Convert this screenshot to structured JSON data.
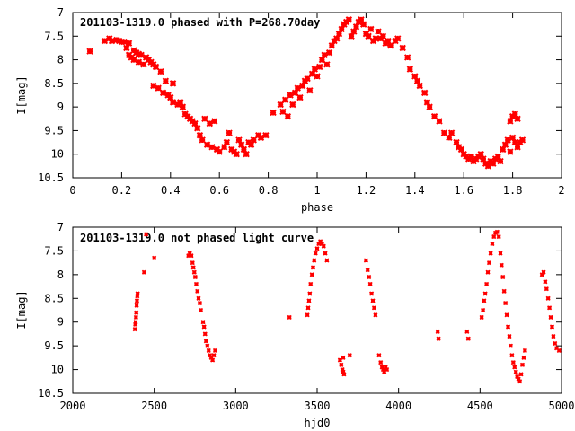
{
  "chart_data": [
    {
      "type": "scatter",
      "title": "201103-1319.0 phased with P=268.70day",
      "xlabel": "phase",
      "ylabel": "I[mag]",
      "xlim": [
        0,
        2
      ],
      "ylim": [
        7,
        10.5
      ],
      "y_inverted": true,
      "x_ticks": [
        "0",
        "0.2",
        "0.4",
        "0.6",
        "0.8",
        "1",
        "1.2",
        "1.4",
        "1.6",
        "1.8",
        "2"
      ],
      "y_ticks": [
        "7",
        "7.5",
        "8",
        "8.5",
        "9",
        "9.5",
        "10",
        "10.5"
      ],
      "marker_color": "#ff0000",
      "marker": "large-cross",
      "points": [
        [
          0.07,
          7.82
        ],
        [
          0.13,
          7.6
        ],
        [
          0.15,
          7.55
        ],
        [
          0.16,
          7.6
        ],
        [
          0.18,
          7.58
        ],
        [
          0.19,
          7.6
        ],
        [
          0.2,
          7.62
        ],
        [
          0.21,
          7.62
        ],
        [
          0.22,
          7.75
        ],
        [
          0.23,
          7.65
        ],
        [
          0.23,
          7.9
        ],
        [
          0.24,
          7.95
        ],
        [
          0.25,
          7.8
        ],
        [
          0.25,
          8.0
        ],
        [
          0.26,
          7.85
        ],
        [
          0.27,
          8.05
        ],
        [
          0.27,
          7.88
        ],
        [
          0.28,
          7.9
        ],
        [
          0.29,
          8.1
        ],
        [
          0.3,
          7.95
        ],
        [
          0.31,
          8.0
        ],
        [
          0.32,
          8.05
        ],
        [
          0.33,
          8.1
        ],
        [
          0.33,
          8.55
        ],
        [
          0.34,
          8.15
        ],
        [
          0.35,
          8.6
        ],
        [
          0.36,
          8.25
        ],
        [
          0.37,
          8.7
        ],
        [
          0.38,
          8.45
        ],
        [
          0.39,
          8.75
        ],
        [
          0.4,
          8.8
        ],
        [
          0.41,
          8.5
        ],
        [
          0.41,
          8.9
        ],
        [
          0.43,
          8.95
        ],
        [
          0.44,
          8.9
        ],
        [
          0.45,
          9.0
        ],
        [
          0.46,
          9.15
        ],
        [
          0.47,
          9.2
        ],
        [
          0.48,
          9.25
        ],
        [
          0.49,
          9.3
        ],
        [
          0.5,
          9.35
        ],
        [
          0.51,
          9.45
        ],
        [
          0.52,
          9.6
        ],
        [
          0.53,
          9.7
        ],
        [
          0.54,
          9.25
        ],
        [
          0.55,
          9.8
        ],
        [
          0.56,
          9.35
        ],
        [
          0.57,
          9.85
        ],
        [
          0.58,
          9.3
        ],
        [
          0.59,
          9.9
        ],
        [
          0.6,
          9.95
        ],
        [
          0.62,
          9.85
        ],
        [
          0.63,
          9.75
        ],
        [
          0.64,
          9.55
        ],
        [
          0.65,
          9.9
        ],
        [
          0.66,
          9.95
        ],
        [
          0.67,
          10.0
        ],
        [
          0.68,
          9.7
        ],
        [
          0.69,
          9.8
        ],
        [
          0.7,
          9.9
        ],
        [
          0.71,
          10.0
        ],
        [
          0.72,
          9.75
        ],
        [
          0.73,
          9.8
        ],
        [
          0.74,
          9.7
        ],
        [
          0.76,
          9.6
        ],
        [
          0.77,
          9.65
        ],
        [
          0.79,
          9.6
        ],
        [
          0.82,
          9.12
        ],
        [
          0.85,
          8.95
        ],
        [
          0.86,
          9.1
        ],
        [
          0.87,
          8.85
        ],
        [
          0.88,
          9.2
        ],
        [
          0.89,
          8.75
        ],
        [
          0.9,
          8.95
        ],
        [
          0.91,
          8.7
        ],
        [
          0.92,
          8.6
        ],
        [
          0.93,
          8.8
        ],
        [
          0.94,
          8.55
        ],
        [
          0.95,
          8.45
        ],
        [
          0.96,
          8.4
        ],
        [
          0.97,
          8.65
        ],
        [
          0.98,
          8.3
        ],
        [
          0.99,
          8.2
        ],
        [
          1.0,
          8.35
        ],
        [
          1.01,
          8.15
        ],
        [
          1.02,
          8.0
        ],
        [
          1.03,
          7.9
        ],
        [
          1.04,
          8.1
        ],
        [
          1.05,
          7.85
        ],
        [
          1.06,
          7.7
        ],
        [
          1.07,
          7.6
        ],
        [
          1.08,
          7.55
        ],
        [
          1.09,
          7.45
        ],
        [
          1.1,
          7.35
        ],
        [
          1.11,
          7.25
        ],
        [
          1.12,
          7.2
        ],
        [
          1.13,
          7.15
        ],
        [
          1.14,
          7.5
        ],
        [
          1.15,
          7.4
        ],
        [
          1.16,
          7.3
        ],
        [
          1.17,
          7.2
        ],
        [
          1.18,
          7.15
        ],
        [
          1.19,
          7.25
        ],
        [
          1.2,
          7.45
        ],
        [
          1.21,
          7.5
        ],
        [
          1.22,
          7.35
        ],
        [
          1.23,
          7.6
        ],
        [
          1.24,
          7.55
        ],
        [
          1.25,
          7.4
        ],
        [
          1.26,
          7.55
        ],
        [
          1.27,
          7.5
        ],
        [
          1.28,
          7.65
        ],
        [
          1.29,
          7.6
        ],
        [
          1.3,
          7.7
        ],
        [
          1.32,
          7.6
        ],
        [
          1.33,
          7.55
        ],
        [
          1.35,
          7.75
        ],
        [
          1.37,
          7.95
        ],
        [
          1.38,
          8.2
        ],
        [
          1.4,
          8.35
        ],
        [
          1.41,
          8.45
        ],
        [
          1.42,
          8.55
        ],
        [
          1.44,
          8.7
        ],
        [
          1.45,
          8.9
        ],
        [
          1.46,
          9.0
        ],
        [
          1.48,
          9.2
        ],
        [
          1.5,
          9.3
        ],
        [
          1.52,
          9.55
        ],
        [
          1.54,
          9.65
        ],
        [
          1.55,
          9.55
        ],
        [
          1.57,
          9.75
        ],
        [
          1.58,
          9.85
        ],
        [
          1.59,
          9.9
        ],
        [
          1.6,
          10.0
        ],
        [
          1.61,
          10.05
        ],
        [
          1.62,
          10.1
        ],
        [
          1.63,
          10.05
        ],
        [
          1.64,
          10.15
        ],
        [
          1.65,
          10.1
        ],
        [
          1.66,
          10.05
        ],
        [
          1.67,
          10.0
        ],
        [
          1.68,
          10.1
        ],
        [
          1.69,
          10.2
        ],
        [
          1.7,
          10.25
        ],
        [
          1.71,
          10.15
        ],
        [
          1.72,
          10.2
        ],
        [
          1.73,
          10.1
        ],
        [
          1.74,
          10.05
        ],
        [
          1.75,
          10.15
        ],
        [
          1.76,
          9.9
        ],
        [
          1.77,
          9.8
        ],
        [
          1.78,
          9.7
        ],
        [
          1.79,
          9.95
        ],
        [
          1.8,
          9.65
        ],
        [
          1.81,
          9.75
        ],
        [
          1.82,
          9.85
        ],
        [
          1.83,
          9.75
        ],
        [
          1.84,
          9.7
        ],
        [
          1.79,
          9.3
        ],
        [
          1.8,
          9.2
        ],
        [
          1.81,
          9.15
        ],
        [
          1.82,
          9.25
        ]
      ]
    },
    {
      "type": "scatter",
      "title": "201103-1319.0 not phased light curve",
      "xlabel": "hjd0",
      "ylabel": "I[mag]",
      "xlim": [
        2000,
        5000
      ],
      "ylim": [
        7,
        10.5
      ],
      "y_inverted": true,
      "x_ticks": [
        "2000",
        "2500",
        "3000",
        "3500",
        "4000",
        "4500",
        "5000"
      ],
      "y_ticks": [
        "7",
        "7.5",
        "8",
        "8.5",
        "9",
        "9.5",
        "10",
        "10.5"
      ],
      "marker_color": "#ff0000",
      "marker": "small-cross",
      "points": [
        [
          2382,
          9.15
        ],
        [
          2384,
          9.05
        ],
        [
          2386,
          9.0
        ],
        [
          2388,
          8.9
        ],
        [
          2390,
          8.8
        ],
        [
          2392,
          8.65
        ],
        [
          2394,
          8.55
        ],
        [
          2396,
          8.45
        ],
        [
          2398,
          8.4
        ],
        [
          2438,
          7.95
        ],
        [
          2450,
          7.15
        ],
        [
          2500,
          7.65
        ],
        [
          2710,
          7.6
        ],
        [
          2718,
          7.55
        ],
        [
          2728,
          7.6
        ],
        [
          2735,
          7.75
        ],
        [
          2740,
          7.85
        ],
        [
          2746,
          7.95
        ],
        [
          2752,
          8.05
        ],
        [
          2758,
          8.2
        ],
        [
          2765,
          8.35
        ],
        [
          2772,
          8.5
        ],
        [
          2780,
          8.6
        ],
        [
          2786,
          8.75
        ],
        [
          2800,
          9.0
        ],
        [
          2806,
          9.1
        ],
        [
          2812,
          9.25
        ],
        [
          2818,
          9.4
        ],
        [
          2826,
          9.5
        ],
        [
          2834,
          9.6
        ],
        [
          2842,
          9.7
        ],
        [
          2850,
          9.75
        ],
        [
          2858,
          9.8
        ],
        [
          2866,
          9.7
        ],
        [
          2874,
          9.6
        ],
        [
          3330,
          8.9
        ],
        [
          3440,
          8.85
        ],
        [
          3445,
          8.7
        ],
        [
          3450,
          8.55
        ],
        [
          3455,
          8.4
        ],
        [
          3460,
          8.2
        ],
        [
          3468,
          8.0
        ],
        [
          3475,
          7.85
        ],
        [
          3482,
          7.7
        ],
        [
          3490,
          7.55
        ],
        [
          3500,
          7.45
        ],
        [
          3510,
          7.35
        ],
        [
          3520,
          7.3
        ],
        [
          3530,
          7.35
        ],
        [
          3540,
          7.4
        ],
        [
          3550,
          7.55
        ],
        [
          3560,
          7.7
        ],
        [
          3640,
          9.8
        ],
        [
          3648,
          9.9
        ],
        [
          3655,
          10.0
        ],
        [
          3660,
          10.05
        ],
        [
          3665,
          10.1
        ],
        [
          3700,
          9.7
        ],
        [
          3660,
          9.75
        ],
        [
          3800,
          7.7
        ],
        [
          3810,
          7.9
        ],
        [
          3818,
          8.05
        ],
        [
          3826,
          8.2
        ],
        [
          3834,
          8.4
        ],
        [
          3842,
          8.55
        ],
        [
          3850,
          8.7
        ],
        [
          3858,
          8.85
        ],
        [
          3880,
          9.7
        ],
        [
          3890,
          9.85
        ],
        [
          3898,
          9.95
        ],
        [
          3905,
          10.0
        ],
        [
          3912,
          10.05
        ],
        [
          3920,
          9.95
        ],
        [
          3928,
          10.0
        ],
        [
          4240,
          9.2
        ],
        [
          4245,
          9.35
        ],
        [
          4420,
          9.2
        ],
        [
          4428,
          9.35
        ],
        [
          4510,
          8.9
        ],
        [
          4518,
          8.75
        ],
        [
          4525,
          8.55
        ],
        [
          4532,
          8.4
        ],
        [
          4540,
          8.2
        ],
        [
          4548,
          7.95
        ],
        [
          4556,
          7.75
        ],
        [
          4565,
          7.55
        ],
        [
          4575,
          7.35
        ],
        [
          4585,
          7.2
        ],
        [
          4595,
          7.12
        ],
        [
          4605,
          7.1
        ],
        [
          4615,
          7.2
        ],
        [
          4625,
          7.55
        ],
        [
          4632,
          7.8
        ],
        [
          4640,
          8.05
        ],
        [
          4648,
          8.35
        ],
        [
          4656,
          8.6
        ],
        [
          4664,
          8.85
        ],
        [
          4672,
          9.1
        ],
        [
          4680,
          9.3
        ],
        [
          4688,
          9.5
        ],
        [
          4696,
          9.7
        ],
        [
          4704,
          9.85
        ],
        [
          4712,
          9.95
        ],
        [
          4720,
          10.05
        ],
        [
          4728,
          10.15
        ],
        [
          4736,
          10.2
        ],
        [
          4744,
          10.25
        ],
        [
          4752,
          10.1
        ],
        [
          4760,
          9.9
        ],
        [
          4768,
          9.75
        ],
        [
          4776,
          9.6
        ],
        [
          4880,
          8.0
        ],
        [
          4890,
          7.95
        ],
        [
          4900,
          8.15
        ],
        [
          4908,
          8.3
        ],
        [
          4918,
          8.5
        ],
        [
          4926,
          8.7
        ],
        [
          4934,
          8.9
        ],
        [
          4942,
          9.1
        ],
        [
          4950,
          9.3
        ],
        [
          4960,
          9.45
        ],
        [
          4970,
          9.55
        ],
        [
          4985,
          9.6
        ]
      ]
    }
  ]
}
